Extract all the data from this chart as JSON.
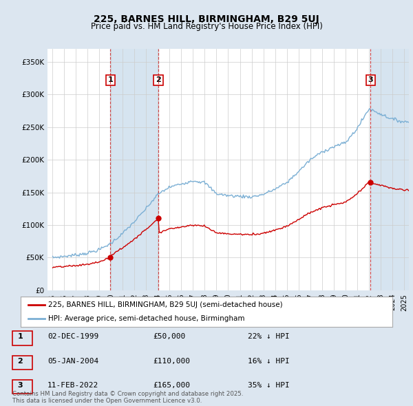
{
  "title": "225, BARNES HILL, BIRMINGHAM, B29 5UJ",
  "subtitle": "Price paid vs. HM Land Registry's House Price Index (HPI)",
  "bg_color": "#dce6f0",
  "plot_bg_color": "#ffffff",
  "grid_color": "#cccccc",
  "red_color": "#cc0000",
  "blue_color": "#7bafd4",
  "shade_color": "#d6e4f0",
  "ylim": [
    0,
    370000
  ],
  "yticks": [
    0,
    50000,
    100000,
    150000,
    200000,
    250000,
    300000,
    350000
  ],
  "sale_times": [
    1999.958,
    2004.042,
    2022.125
  ],
  "sale_prices": [
    50000,
    110000,
    165000
  ],
  "sale_labels": [
    "1",
    "2",
    "3"
  ],
  "sale_info": [
    {
      "num": "1",
      "date": "02-DEC-1999",
      "price": "£50,000",
      "pct": "22% ↓ HPI"
    },
    {
      "num": "2",
      "date": "05-JAN-2004",
      "price": "£110,000",
      "pct": "16% ↓ HPI"
    },
    {
      "num": "3",
      "date": "11-FEB-2022",
      "price": "£165,000",
      "pct": "35% ↓ HPI"
    }
  ],
  "legend_label_red": "225, BARNES HILL, BIRMINGHAM, B29 5UJ (semi-detached house)",
  "legend_label_blue": "HPI: Average price, semi-detached house, Birmingham",
  "footnote": "Contains HM Land Registry data © Crown copyright and database right 2025.\nThis data is licensed under the Open Government Licence v3.0.",
  "hpi_knots_x": [
    1995,
    1996,
    1997,
    1998,
    1999,
    2000,
    2001,
    2002,
    2003,
    2004,
    2005,
    2006,
    2007,
    2008,
    2009,
    2010,
    2011,
    2012,
    2013,
    2014,
    2015,
    2016,
    2017,
    2018,
    2019,
    2020,
    2021,
    2022,
    2023,
    2024,
    2025
  ],
  "hpi_knots_y": [
    50000,
    52000,
    54000,
    57000,
    62000,
    72000,
    87000,
    105000,
    125000,
    147000,
    158000,
    163000,
    168000,
    165000,
    148000,
    145000,
    144000,
    143000,
    147000,
    155000,
    165000,
    182000,
    200000,
    212000,
    220000,
    226000,
    248000,
    278000,
    270000,
    262000,
    258000
  ],
  "xlim_left": 1994.6,
  "xlim_right": 2025.4
}
